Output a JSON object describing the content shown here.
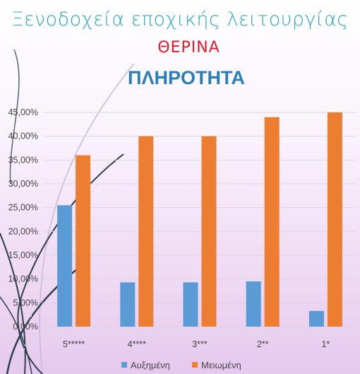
{
  "header": {
    "title": "Ξενοδοχεία εποχικής λειτουργίας",
    "subtitle": "ΘΕΡΙΝΑ"
  },
  "colors": {
    "series1": "#5b9bd5",
    "series2": "#ed7d31",
    "grid": "#d9d9d9",
    "title": "#2a7fb8"
  },
  "chart_data": {
    "type": "bar",
    "title": "ΠΛΗΡΟΤΗΤΑ",
    "categories": [
      "5*****",
      "4****",
      "3***",
      "2**",
      "1*"
    ],
    "series": [
      {
        "name": "Αυξημένη",
        "values": [
          0.255,
          0.093,
          0.093,
          0.095,
          0.033
        ]
      },
      {
        "name": "Μειωμένη",
        "values": [
          0.36,
          0.4,
          0.4,
          0.44,
          0.45
        ]
      }
    ],
    "y_ticks": [
      "0,00%",
      "5,00%",
      "10,00%",
      "15,00%",
      "20,00%",
      "25,00%",
      "30,00%",
      "35,00%",
      "40,00%",
      "45,00%"
    ],
    "ylim": [
      0,
      0.45
    ],
    "grid": true,
    "legend": "bottom"
  }
}
